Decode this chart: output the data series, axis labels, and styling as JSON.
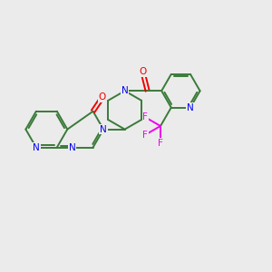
{
  "bg_color": "#ebebeb",
  "bond_color": "#3a7a3a",
  "nitrogen_color": "#0000ee",
  "oxygen_color": "#ee0000",
  "fluorine_color": "#ee00ee",
  "line_width": 1.4,
  "figsize": [
    3.0,
    3.0
  ],
  "dpi": 100,
  "xlim": [
    0,
    10
  ],
  "ylim": [
    0,
    10
  ]
}
